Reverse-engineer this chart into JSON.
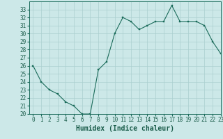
{
  "x": [
    0,
    1,
    2,
    3,
    4,
    5,
    6,
    7,
    8,
    9,
    10,
    11,
    12,
    13,
    14,
    15,
    16,
    17,
    18,
    19,
    20,
    21,
    22,
    23
  ],
  "y": [
    26.0,
    24.0,
    23.0,
    22.5,
    21.5,
    21.0,
    20.0,
    20.0,
    25.5,
    26.5,
    30.0,
    32.0,
    31.5,
    30.5,
    31.0,
    31.5,
    31.5,
    33.5,
    31.5,
    31.5,
    31.5,
    31.0,
    29.0,
    27.5
  ],
  "xlabel": "Humidex (Indice chaleur)",
  "ylim": [
    20,
    34
  ],
  "xlim": [
    -0.5,
    23
  ],
  "yticks": [
    20,
    21,
    22,
    23,
    24,
    25,
    26,
    27,
    28,
    29,
    30,
    31,
    32,
    33
  ],
  "xticks": [
    0,
    1,
    2,
    3,
    4,
    5,
    6,
    7,
    8,
    9,
    10,
    11,
    12,
    13,
    14,
    15,
    16,
    17,
    18,
    19,
    20,
    21,
    22,
    23
  ],
  "line_color": "#1a6b5a",
  "marker_color": "#1a6b5a",
  "bg_color": "#cce8e8",
  "grid_color": "#aacfcf",
  "tick_label_color": "#1a5c4a",
  "xlabel_color": "#1a5c4a",
  "xlabel_fontsize": 7,
  "tick_fontsize": 5.5
}
